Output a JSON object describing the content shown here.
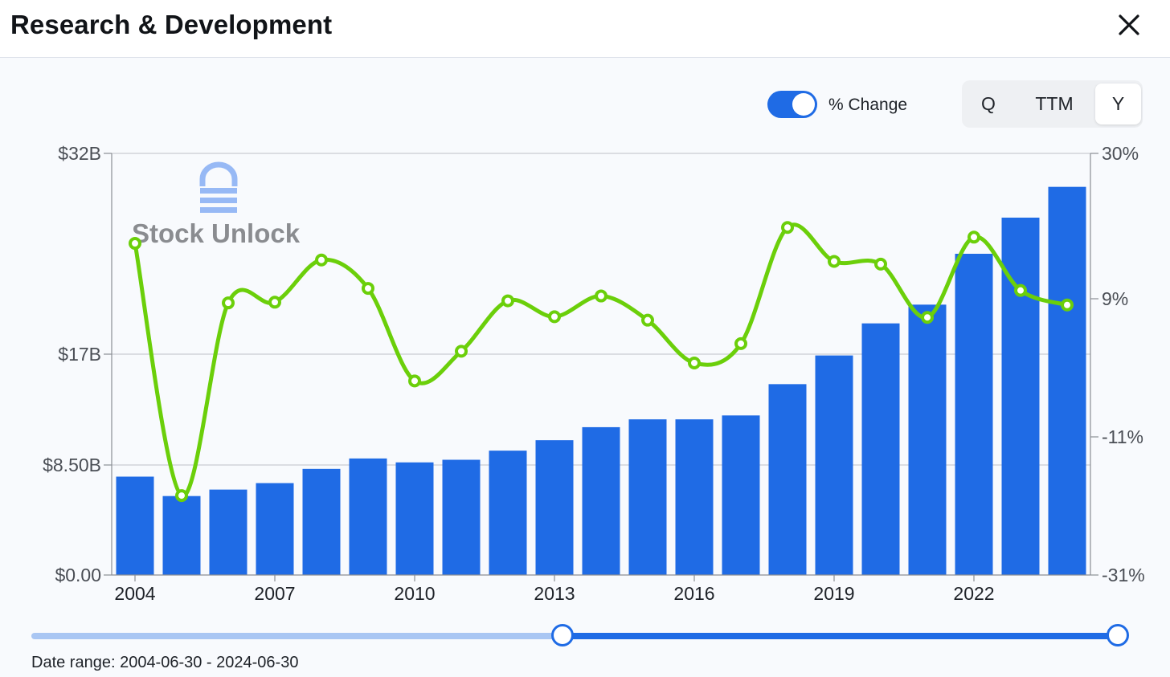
{
  "header": {
    "title": "Research & Development"
  },
  "controls": {
    "toggle_label": "% Change",
    "toggle_on": true,
    "periods": [
      "Q",
      "TTM",
      "Y"
    ],
    "active_period": "Y"
  },
  "watermark": {
    "text": "Stock Unlock"
  },
  "footer": {
    "date_range": "Date range: 2004-06-30 - 2024-06-30"
  },
  "slider": {
    "start_fraction": 0.49,
    "end_fraction": 1.0
  },
  "colors": {
    "bar": "#1f6be5",
    "line": "#6bcf0a",
    "accent": "#1f6be5"
  },
  "chart_data": {
    "type": "bar",
    "years": [
      2004,
      2005,
      2006,
      2007,
      2008,
      2009,
      2010,
      2011,
      2012,
      2013,
      2014,
      2015,
      2016,
      2017,
      2018,
      2019,
      2020,
      2021,
      2022,
      2023,
      2024
    ],
    "x_tick_labels": [
      "2004",
      "2007",
      "2010",
      "2013",
      "2016",
      "2019",
      "2022"
    ],
    "series": [
      {
        "values": [
          7.6,
          6.1,
          6.6,
          7.1,
          8.2,
          9.0,
          8.7,
          8.9,
          9.6,
          10.4,
          11.4,
          12.0,
          12.0,
          12.3,
          14.7,
          16.9,
          19.3,
          20.7,
          24.5,
          27.2,
          29.5
        ]
      },
      {
        "values": [
          17.0,
          -19.5,
          8.4,
          8.5,
          14.6,
          10.5,
          -2.9,
          1.4,
          8.7,
          6.4,
          9.4,
          5.9,
          -0.3,
          2.5,
          19.3,
          14.4,
          14.0,
          6.3,
          17.9,
          10.2,
          8.1
        ]
      }
    ],
    "y_left": {
      "ticks": [
        0,
        8.5,
        17,
        32
      ],
      "tick_labels": [
        "$0.00",
        "$8.50B",
        "$17B",
        "$32B"
      ]
    },
    "y_right": {
      "ticks": [
        -31,
        -11,
        9,
        30
      ],
      "tick_labels": [
        "-31%",
        "-11%",
        "9%",
        "30%"
      ]
    },
    "grid": true
  }
}
